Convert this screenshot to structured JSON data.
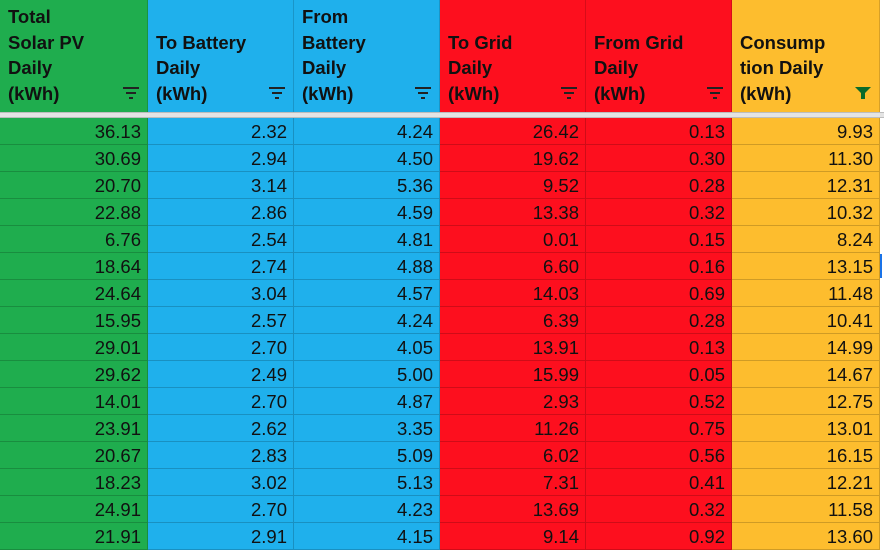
{
  "table": {
    "headers": [
      [
        "Total",
        "Solar PV",
        "Daily",
        "(kWh)"
      ],
      [
        "To Battery",
        "Daily",
        "(kWh)"
      ],
      [
        "From",
        "Battery",
        "Daily",
        "(kWh)"
      ],
      [
        "To Grid",
        "Daily",
        "(kWh)"
      ],
      [
        "From Grid",
        "Daily",
        "(kWh)"
      ],
      [
        "Consump",
        "tion Daily",
        "(kWh)"
      ]
    ],
    "rows": [
      [
        "36.13",
        "2.32",
        "4.24",
        "26.42",
        "0.13",
        "9.93"
      ],
      [
        "30.69",
        "2.94",
        "4.50",
        "19.62",
        "0.30",
        "11.30"
      ],
      [
        "20.70",
        "3.14",
        "5.36",
        "9.52",
        "0.28",
        "12.31"
      ],
      [
        "22.88",
        "2.86",
        "4.59",
        "13.38",
        "0.32",
        "10.32"
      ],
      [
        "6.76",
        "2.54",
        "4.81",
        "0.01",
        "0.15",
        "8.24"
      ],
      [
        "18.64",
        "2.74",
        "4.88",
        "6.60",
        "0.16",
        "13.15"
      ],
      [
        "24.64",
        "3.04",
        "4.57",
        "14.03",
        "0.69",
        "11.48"
      ],
      [
        "15.95",
        "2.57",
        "4.24",
        "6.39",
        "0.28",
        "10.41"
      ],
      [
        "29.01",
        "2.70",
        "4.05",
        "13.91",
        "0.13",
        "14.99"
      ],
      [
        "29.62",
        "2.49",
        "5.00",
        "15.99",
        "0.05",
        "14.67"
      ],
      [
        "14.01",
        "2.70",
        "4.87",
        "2.93",
        "0.52",
        "12.75"
      ],
      [
        "23.91",
        "2.62",
        "3.35",
        "11.26",
        "0.75",
        "13.01"
      ],
      [
        "20.67",
        "2.83",
        "5.09",
        "6.02",
        "0.56",
        "16.15"
      ],
      [
        "18.23",
        "3.02",
        "5.13",
        "7.31",
        "0.41",
        "12.21"
      ],
      [
        "24.91",
        "2.70",
        "4.23",
        "13.69",
        "0.32",
        "11.58"
      ],
      [
        "21.91",
        "2.91",
        "4.15",
        "9.14",
        "0.92",
        "13.60"
      ]
    ]
  }
}
